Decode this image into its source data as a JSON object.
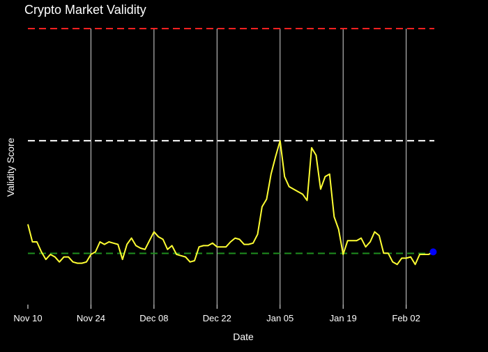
{
  "chart_data": {
    "type": "line",
    "title": "Crypto Market Validity",
    "xlabel": "Date",
    "ylabel": "Validity Score",
    "x_ticks": [
      "Nov 10",
      "Nov 24",
      "Dec 08",
      "Dec 22",
      "Jan 05",
      "Jan 19",
      "Feb 02"
    ],
    "x_range": [
      "2023-11-10",
      "2024-02-09"
    ],
    "y_range": [
      0,
      1
    ],
    "y_ticks_shown": false,
    "gridlines": "vertical",
    "reference_lines": [
      {
        "value": 1.0,
        "color": "#ff2020",
        "style": "dashed"
      },
      {
        "value": 0.553,
        "color": "#ffffff",
        "style": "dashed"
      },
      {
        "value": 0.104,
        "color": "#1f8f1f",
        "style": "dashed"
      }
    ],
    "series": [
      {
        "color": "#ffff33",
        "x": [
          "2023-11-10",
          "2023-11-11",
          "2023-11-12",
          "2023-11-13",
          "2023-11-14",
          "2023-11-15",
          "2023-11-16",
          "2023-11-17",
          "2023-11-18",
          "2023-11-19",
          "2023-11-20",
          "2023-11-21",
          "2023-11-22",
          "2023-11-23",
          "2023-11-24",
          "2023-11-25",
          "2023-11-26",
          "2023-11-27",
          "2023-11-28",
          "2023-11-29",
          "2023-11-30",
          "2023-12-01",
          "2023-12-02",
          "2023-12-03",
          "2023-12-04",
          "2023-12-05",
          "2023-12-06",
          "2023-12-07",
          "2023-12-08",
          "2023-12-09",
          "2023-12-10",
          "2023-12-11",
          "2023-12-12",
          "2023-12-13",
          "2023-12-14",
          "2023-12-15",
          "2023-12-16",
          "2023-12-17",
          "2023-12-18",
          "2023-12-19",
          "2023-12-20",
          "2023-12-21",
          "2023-12-22",
          "2023-12-23",
          "2023-12-24",
          "2023-12-25",
          "2023-12-26",
          "2023-12-27",
          "2023-12-28",
          "2023-12-29",
          "2023-12-30",
          "2023-12-31",
          "2024-01-01",
          "2024-01-02",
          "2024-01-03",
          "2024-01-04",
          "2024-01-05",
          "2024-01-06",
          "2024-01-07",
          "2024-01-08",
          "2024-01-09",
          "2024-01-10",
          "2024-01-11",
          "2024-01-12",
          "2024-01-13",
          "2024-01-14",
          "2024-01-15",
          "2024-01-16",
          "2024-01-17",
          "2024-01-18",
          "2024-01-19",
          "2024-01-20",
          "2024-01-21",
          "2024-01-22",
          "2024-01-23",
          "2024-01-24",
          "2024-01-25",
          "2024-01-26",
          "2024-01-27",
          "2024-01-28",
          "2024-01-29",
          "2024-01-30",
          "2024-01-31",
          "2024-02-01",
          "2024-02-02",
          "2024-02-03",
          "2024-02-04",
          "2024-02-05",
          "2024-02-06",
          "2024-02-07",
          "2024-02-08"
        ],
        "values": [
          0.22,
          0.15,
          0.15,
          0.11,
          0.08,
          0.1,
          0.09,
          0.07,
          0.09,
          0.09,
          0.07,
          0.065,
          0.065,
          0.07,
          0.1,
          0.11,
          0.15,
          0.14,
          0.15,
          0.145,
          0.14,
          0.08,
          0.14,
          0.165,
          0.135,
          0.125,
          0.12,
          0.155,
          0.19,
          0.17,
          0.16,
          0.12,
          0.135,
          0.1,
          0.095,
          0.09,
          0.07,
          0.075,
          0.13,
          0.135,
          0.135,
          0.145,
          0.13,
          0.13,
          0.13,
          0.15,
          0.165,
          0.16,
          0.14,
          0.14,
          0.145,
          0.18,
          0.29,
          0.32,
          0.42,
          0.49,
          0.553,
          0.41,
          0.37,
          0.36,
          0.35,
          0.34,
          0.315,
          0.525,
          0.495,
          0.36,
          0.41,
          0.42,
          0.25,
          0.2,
          0.1,
          0.155,
          0.155,
          0.155,
          0.165,
          0.13,
          0.15,
          0.19,
          0.175,
          0.105,
          0.105,
          0.07,
          0.06,
          0.085,
          0.085,
          0.09,
          0.06,
          0.1,
          0.1,
          0.1,
          0.11
        ]
      }
    ],
    "highlight_point": {
      "x": "2024-02-08",
      "value": 0.11,
      "color": "#0000ff"
    }
  }
}
